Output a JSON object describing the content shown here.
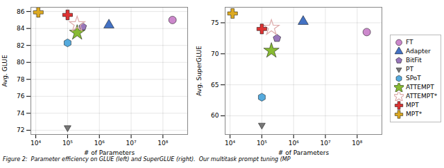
{
  "chart_data": [
    {
      "type": "scatter",
      "xlabel": "# of Parameters",
      "ylabel": "Avg. GLUE",
      "log": "x",
      "grid": true,
      "xlim": [
        7000,
        600000000.0
      ],
      "xticks": [
        {
          "value": 10000,
          "label": "10⁴"
        },
        {
          "value": 100000,
          "label": "10⁵"
        },
        {
          "value": 1000000,
          "label": "10⁶"
        },
        {
          "value": 10000000,
          "label": "10⁷"
        },
        {
          "value": 100000000,
          "label": "10⁸"
        }
      ],
      "ylim": [
        71.5,
        86.5
      ],
      "yticks": [
        72,
        74,
        76,
        78,
        80,
        82,
        84,
        86
      ],
      "annotations": [
        "Figure 2:  Parameter efficiency on GLUE (left) and SuperGLUE (right).  Our multitask prompt tuning (MP"
      ],
      "series": [
        {
          "name": "FT",
          "color": "#cc88cc",
          "marker": "circle",
          "x": [
            200000000.0
          ],
          "values": [
            85.0
          ]
        },
        {
          "name": "Adapter",
          "color": "#4472c4",
          "marker": "triangle-up",
          "x": [
            2000000.0
          ],
          "values": [
            84.4
          ]
        },
        {
          "name": "BitFit",
          "color": "#9977bb",
          "marker": "pentagon",
          "x": [
            300000.0
          ],
          "values": [
            84.2
          ]
        },
        {
          "name": "PT",
          "color": "#777777",
          "marker": "triangle-down",
          "x": [
            100000.0
          ],
          "values": [
            72.3
          ]
        },
        {
          "name": "SPoT",
          "color": "#55aadd",
          "marker": "hexagon",
          "x": [
            100000.0
          ],
          "values": [
            82.3
          ]
        },
        {
          "name": "ATTEMPT",
          "color": "#88bb33",
          "marker": "star",
          "x": [
            200000.0
          ],
          "values": [
            83.5
          ]
        },
        {
          "name": "ATTEMPT*",
          "color": "#ddaaaa",
          "marker": "star-outline",
          "x": [
            200000.0
          ],
          "values": [
            84.5
          ]
        },
        {
          "name": "MPT",
          "color": "#dd3333",
          "marker": "plus",
          "x": [
            100000.0
          ],
          "values": [
            85.6
          ]
        },
        {
          "name": "MPT*",
          "color": "#ddaa22",
          "marker": "plus",
          "x": [
            12000.0
          ],
          "values": [
            85.9
          ]
        }
      ]
    },
    {
      "type": "scatter",
      "xlabel": "# of Parameters",
      "ylabel": "Avg. SuperGLUE",
      "log": "x",
      "grid": true,
      "legend": "right",
      "xlim": [
        7000,
        600000000.0
      ],
      "xticks": [
        {
          "value": 10000,
          "label": "10⁴"
        },
        {
          "value": 100000,
          "label": "10⁵"
        },
        {
          "value": 1000000,
          "label": "10⁶"
        },
        {
          "value": 10000000,
          "label": "10⁷"
        },
        {
          "value": 100000000,
          "label": "10⁸"
        }
      ],
      "ylim": [
        57,
        77.5
      ],
      "yticks": [
        60,
        65,
        70,
        75
      ],
      "series": [
        {
          "name": "FT",
          "color": "#cc88cc",
          "marker": "circle",
          "x": [
            200000000.0
          ],
          "values": [
            73.5
          ]
        },
        {
          "name": "Adapter",
          "color": "#4472c4",
          "marker": "triangle-up",
          "x": [
            2000000.0
          ],
          "values": [
            75.2
          ]
        },
        {
          "name": "BitFit",
          "color": "#9977bb",
          "marker": "pentagon",
          "x": [
            300000.0
          ],
          "values": [
            72.5
          ]
        },
        {
          "name": "PT",
          "color": "#777777",
          "marker": "triangle-down",
          "x": [
            100000.0
          ],
          "values": [
            58.5
          ]
        },
        {
          "name": "SPoT",
          "color": "#55aadd",
          "marker": "hexagon",
          "x": [
            100000.0
          ],
          "values": [
            63.0
          ]
        },
        {
          "name": "ATTEMPT",
          "color": "#88bb33",
          "marker": "star",
          "x": [
            200000.0
          ],
          "values": [
            70.5
          ]
        },
        {
          "name": "ATTEMPT*",
          "color": "#ddaaaa",
          "marker": "star-outline",
          "x": [
            200000.0
          ],
          "values": [
            74.2
          ]
        },
        {
          "name": "MPT",
          "color": "#dd3333",
          "marker": "plus",
          "x": [
            100000.0
          ],
          "values": [
            74.0
          ]
        },
        {
          "name": "MPT*",
          "color": "#ddaa22",
          "marker": "plus",
          "x": [
            12000.0
          ],
          "values": [
            76.5
          ]
        }
      ]
    }
  ]
}
